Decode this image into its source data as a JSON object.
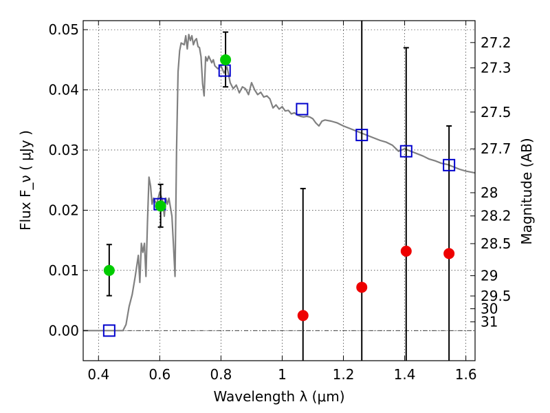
{
  "chart_data": {
    "type": "scatter",
    "title": "",
    "xlabel": "Wavelength  λ (μm)",
    "ylabel": "Flux  F_ν  ( μJy )",
    "y2label": "Magnitude (AB)",
    "xlim": [
      0.35,
      1.63
    ],
    "ylim": [
      -0.005,
      0.0515
    ],
    "grid": true,
    "x_ticks": [
      0.4,
      0.6,
      0.8,
      1.0,
      1.2,
      1.4,
      1.6
    ],
    "x_tick_labels": [
      "0.4",
      "0.6",
      "0.8",
      "1",
      "1.2",
      "1.4",
      "1.6"
    ],
    "y_ticks": [
      0.0,
      0.01,
      0.02,
      0.03,
      0.04,
      0.05
    ],
    "y_tick_labels": [
      "0.00",
      "0.01",
      "0.02",
      "0.03",
      "0.04",
      "0.05"
    ],
    "y2_ticks": [
      {
        "label": "27.2",
        "flux": 0.04786
      },
      {
        "label": "27.3",
        "flux": 0.04365
      },
      {
        "label": "27.5",
        "flux": 0.03631
      },
      {
        "label": "27.7",
        "flux": 0.0302
      },
      {
        "label": "28",
        "flux": 0.02291
      },
      {
        "label": "28.2",
        "flux": 0.01905
      },
      {
        "label": "28.5",
        "flux": 0.01445
      },
      {
        "label": "29",
        "flux": 0.00912
      },
      {
        "label": "29.5",
        "flux": 0.00575
      },
      {
        "label": "30",
        "flux": 0.00363
      },
      {
        "label": "31",
        "flux": 0.00145
      }
    ],
    "series": [
      {
        "name": "",
        "kind": "line",
        "color": "#808080",
        "points": [
          [
            0.35,
            0.0
          ],
          [
            0.48,
            0.0
          ],
          [
            0.49,
            0.001
          ],
          [
            0.5,
            0.004
          ],
          [
            0.51,
            0.006
          ],
          [
            0.52,
            0.009
          ],
          [
            0.53,
            0.0125
          ],
          [
            0.535,
            0.008
          ],
          [
            0.54,
            0.0145
          ],
          [
            0.545,
            0.013
          ],
          [
            0.55,
            0.0145
          ],
          [
            0.555,
            0.009
          ],
          [
            0.56,
            0.018
          ],
          [
            0.565,
            0.0255
          ],
          [
            0.57,
            0.024
          ],
          [
            0.575,
            0.021
          ],
          [
            0.58,
            0.022
          ],
          [
            0.59,
            0.021
          ],
          [
            0.6,
            0.023
          ],
          [
            0.61,
            0.0215
          ],
          [
            0.615,
            0.019
          ],
          [
            0.62,
            0.022
          ],
          [
            0.625,
            0.021
          ],
          [
            0.63,
            0.022
          ],
          [
            0.64,
            0.019
          ],
          [
            0.645,
            0.014
          ],
          [
            0.65,
            0.009
          ],
          [
            0.655,
            0.03
          ],
          [
            0.66,
            0.043
          ],
          [
            0.665,
            0.0465
          ],
          [
            0.67,
            0.0478
          ],
          [
            0.68,
            0.0475
          ],
          [
            0.685,
            0.049
          ],
          [
            0.69,
            0.0468
          ],
          [
            0.695,
            0.0492
          ],
          [
            0.7,
            0.0482
          ],
          [
            0.705,
            0.049
          ],
          [
            0.71,
            0.0475
          ],
          [
            0.715,
            0.0482
          ],
          [
            0.72,
            0.0485
          ],
          [
            0.725,
            0.0472
          ],
          [
            0.73,
            0.047
          ],
          [
            0.735,
            0.0455
          ],
          [
            0.74,
            0.041
          ],
          [
            0.745,
            0.039
          ],
          [
            0.75,
            0.0455
          ],
          [
            0.755,
            0.0448
          ],
          [
            0.76,
            0.0456
          ],
          [
            0.77,
            0.0445
          ],
          [
            0.775,
            0.045
          ],
          [
            0.78,
            0.044
          ],
          [
            0.79,
            0.0435
          ],
          [
            0.8,
            0.044
          ],
          [
            0.81,
            0.0428
          ],
          [
            0.82,
            0.0438
          ],
          [
            0.83,
            0.0412
          ],
          [
            0.84,
            0.0402
          ],
          [
            0.85,
            0.0408
          ],
          [
            0.86,
            0.0395
          ],
          [
            0.87,
            0.0405
          ],
          [
            0.88,
            0.0402
          ],
          [
            0.89,
            0.0392
          ],
          [
            0.9,
            0.0412
          ],
          [
            0.91,
            0.04
          ],
          [
            0.92,
            0.0392
          ],
          [
            0.93,
            0.0396
          ],
          [
            0.94,
            0.0388
          ],
          [
            0.95,
            0.039
          ],
          [
            0.96,
            0.0385
          ],
          [
            0.97,
            0.037
          ],
          [
            0.98,
            0.0375
          ],
          [
            0.99,
            0.0368
          ],
          [
            1.0,
            0.0372
          ],
          [
            1.01,
            0.0365
          ],
          [
            1.02,
            0.0366
          ],
          [
            1.03,
            0.036
          ],
          [
            1.04,
            0.0362
          ],
          [
            1.05,
            0.0358
          ],
          [
            1.06,
            0.0356
          ],
          [
            1.07,
            0.0355
          ],
          [
            1.08,
            0.0356
          ],
          [
            1.09,
            0.0355
          ],
          [
            1.1,
            0.0352
          ],
          [
            1.11,
            0.0345
          ],
          [
            1.12,
            0.034
          ],
          [
            1.13,
            0.0348
          ],
          [
            1.14,
            0.035
          ],
          [
            1.16,
            0.0348
          ],
          [
            1.18,
            0.0345
          ],
          [
            1.2,
            0.034
          ],
          [
            1.22,
            0.0336
          ],
          [
            1.24,
            0.0332
          ],
          [
            1.26,
            0.0328
          ],
          [
            1.28,
            0.0324
          ],
          [
            1.3,
            0.032
          ],
          [
            1.32,
            0.0316
          ],
          [
            1.34,
            0.0313
          ],
          [
            1.36,
            0.0308
          ],
          [
            1.38,
            0.0298
          ],
          [
            1.4,
            0.0302
          ],
          [
            1.42,
            0.0298
          ],
          [
            1.44,
            0.0294
          ],
          [
            1.46,
            0.029
          ],
          [
            1.48,
            0.0285
          ],
          [
            1.5,
            0.0282
          ],
          [
            1.52,
            0.0278
          ],
          [
            1.54,
            0.0276
          ],
          [
            1.56,
            0.0272
          ],
          [
            1.58,
            0.0268
          ],
          [
            1.6,
            0.0265
          ],
          [
            1.63,
            0.0262
          ]
        ]
      },
      {
        "name": "",
        "kind": "markers",
        "marker": "square-open",
        "color": "#0000cc",
        "x": [
          0.435,
          0.6,
          0.812,
          1.065,
          1.26,
          1.405,
          1.545
        ],
        "y": [
          0.0,
          0.021,
          0.0432,
          0.0368,
          0.0325,
          0.0298,
          0.0275
        ]
      },
      {
        "name": "",
        "kind": "markers",
        "marker": "circle",
        "color": "#00cc00",
        "x": [
          0.435,
          0.603,
          0.815
        ],
        "y": [
          0.01,
          0.0207,
          0.045
        ],
        "yerr_low": [
          0.0058,
          0.0172,
          0.0405
        ],
        "yerr_high": [
          0.0143,
          0.0243,
          0.0496
        ]
      },
      {
        "name": "",
        "kind": "markers",
        "marker": "circle",
        "color": "#ee0000",
        "x": [
          1.068,
          1.26,
          1.405,
          1.545
        ],
        "y": [
          0.0025,
          0.0072,
          0.0132,
          0.0128
        ],
        "yerr_low": [
          -0.005,
          -0.005,
          -0.005,
          -0.005
        ],
        "yerr_high": [
          0.0236,
          0.0515,
          0.047,
          0.034
        ]
      }
    ]
  }
}
